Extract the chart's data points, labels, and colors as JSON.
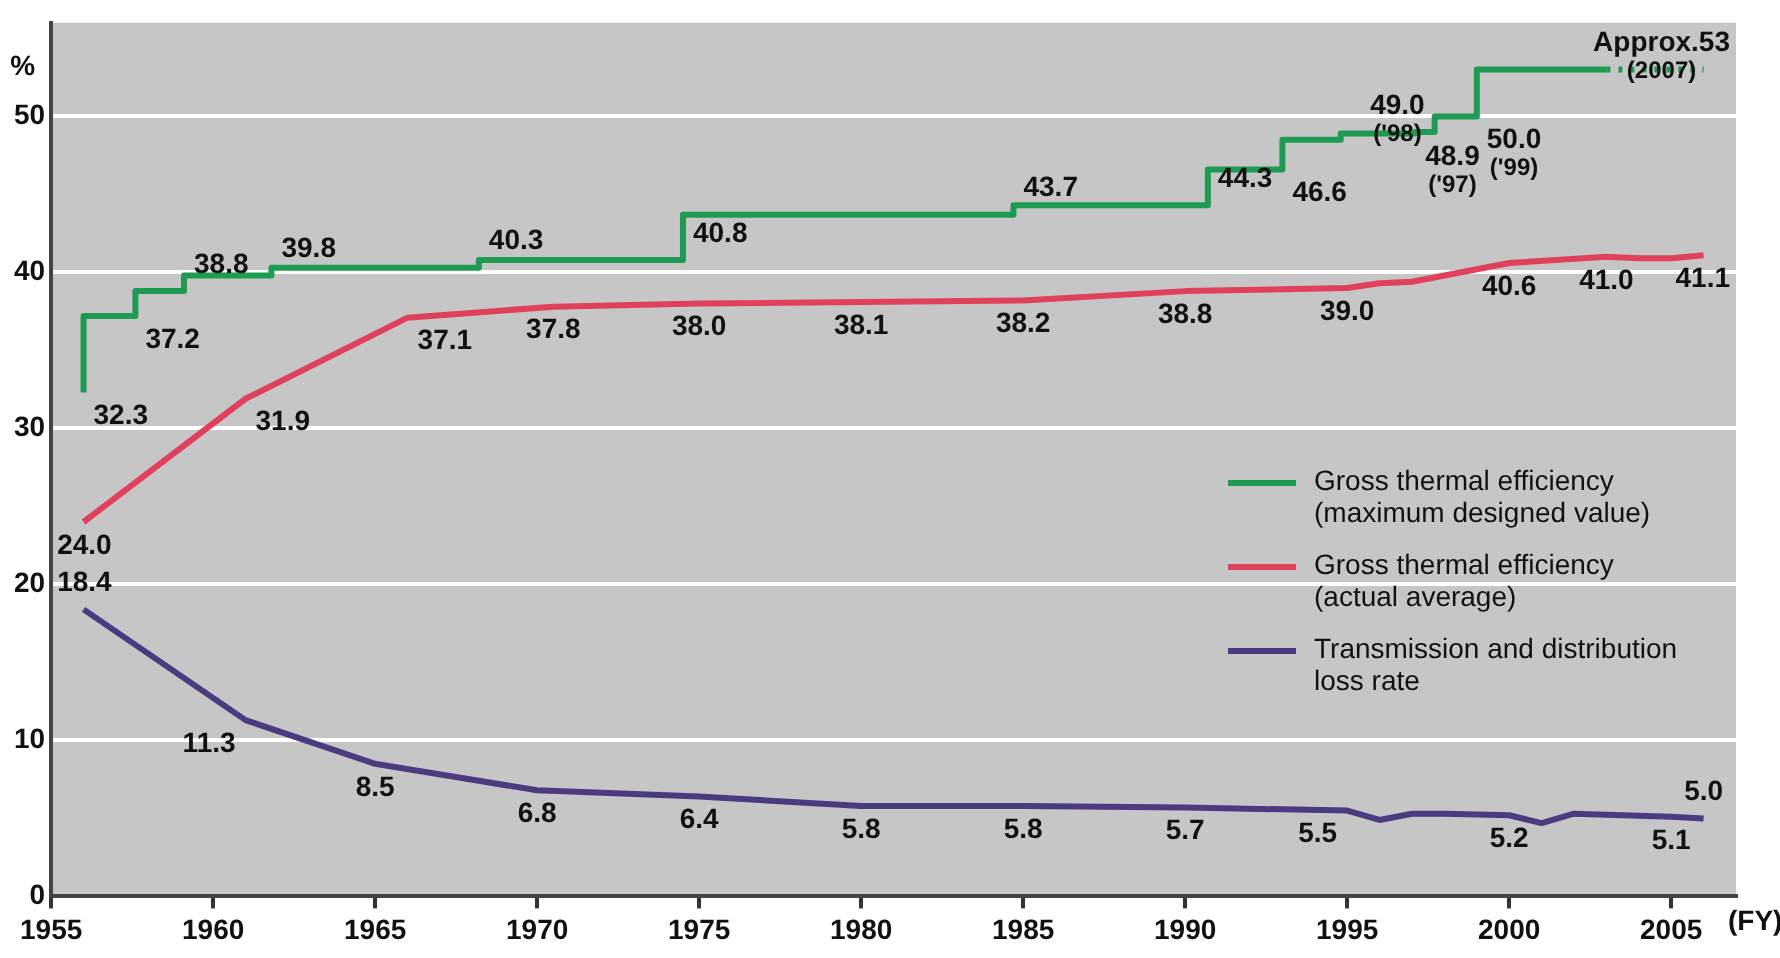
{
  "chart_data": {
    "type": "line",
    "ylabel": "%",
    "xlabel": "(FY)",
    "xlim": [
      1955,
      2007
    ],
    "xticks": [
      1955,
      1960,
      1965,
      1970,
      1975,
      1980,
      1985,
      1990,
      1995,
      2000,
      2005
    ],
    "ylim": [
      0,
      56
    ],
    "yticks": [
      0,
      10,
      20,
      30,
      40,
      50
    ],
    "grid": "y",
    "legend": "right",
    "marker": "none",
    "series": [
      {
        "name": "Gross thermal efficiency (maximum designed value)",
        "type": "step",
        "color": "#1f9a52",
        "x": [
          1956,
          1957.6,
          1959.1,
          1961.8,
          1968.2,
          1974.5,
          1984.7,
          1990.7,
          1993,
          1994.8,
          1997.1,
          1997.7,
          1999,
          1999.5,
          2003
        ],
        "values": [
          32.3,
          37.2,
          38.8,
          39.8,
          40.3,
          40.8,
          43.7,
          44.3,
          46.6,
          48.5,
          48.9,
          49.0,
          50.0,
          53,
          53
        ],
        "value_labels": [
          "32.3",
          "37.2",
          "38.8",
          "39.8",
          "40.3",
          "40.8",
          "43.7",
          "44.3",
          "46.6",
          null,
          "48.9",
          "49.0",
          "50.0",
          null,
          null
        ]
      },
      {
        "name": "Gross thermal efficiency (actual average)",
        "color": "#e0405c",
        "x": [
          1956,
          1961,
          1966,
          1970.5,
          1975,
          1980,
          1985,
          1990,
          1995,
          1996,
          1997,
          2000,
          2003,
          2004,
          2005,
          2006
        ],
        "values": [
          24.0,
          31.9,
          37.1,
          37.8,
          38.0,
          38.1,
          38.2,
          38.8,
          39.0,
          39.3,
          39.4,
          40.6,
          41.0,
          40.9,
          40.9,
          41.1
        ],
        "value_labels": [
          "24.0",
          "31.9",
          "37.1",
          "37.8",
          "38.0",
          "38.1",
          "38.2",
          "38.8",
          "39.0",
          null,
          null,
          "40.6",
          "41.0",
          null,
          null,
          "41.1"
        ]
      },
      {
        "name": "Transmission and distribution loss rate",
        "color": "#4b3a80",
        "x": [
          1956,
          1961,
          1965,
          1970,
          1975,
          1980,
          1985,
          1990,
          1995,
          1996,
          1997,
          1998,
          2000,
          2001,
          2002,
          2005,
          2006
        ],
        "values": [
          18.4,
          11.3,
          8.5,
          6.8,
          6.4,
          5.8,
          5.8,
          5.7,
          5.5,
          4.9,
          5.3,
          5.3,
          5.2,
          4.7,
          5.3,
          5.1,
          5.0
        ],
        "value_labels": [
          "18.4",
          "11.3",
          "8.5",
          "6.8",
          "6.4",
          "5.8",
          "5.8",
          "5.7",
          "5.5",
          null,
          null,
          null,
          "5.2",
          null,
          null,
          "5.1",
          "5.0"
        ]
      },
      {
        "type": "step",
        "color": "#1f9a52",
        "line_style": "dotted",
        "x": [
          2003,
          2006
        ],
        "values": [
          53,
          53
        ],
        "value_labels": [
          null,
          "Approx.53"
        ]
      }
    ],
    "annotations": [
      {
        "text": "('97)",
        "x": 1997.1,
        "y": 48.9
      },
      {
        "text": "('98)",
        "x": 1997.7,
        "y": 49.0
      },
      {
        "text": "('99)",
        "x": 1999,
        "y": 50.0
      },
      {
        "text": "(2007)",
        "x": 2006,
        "y": 53
      }
    ]
  }
}
